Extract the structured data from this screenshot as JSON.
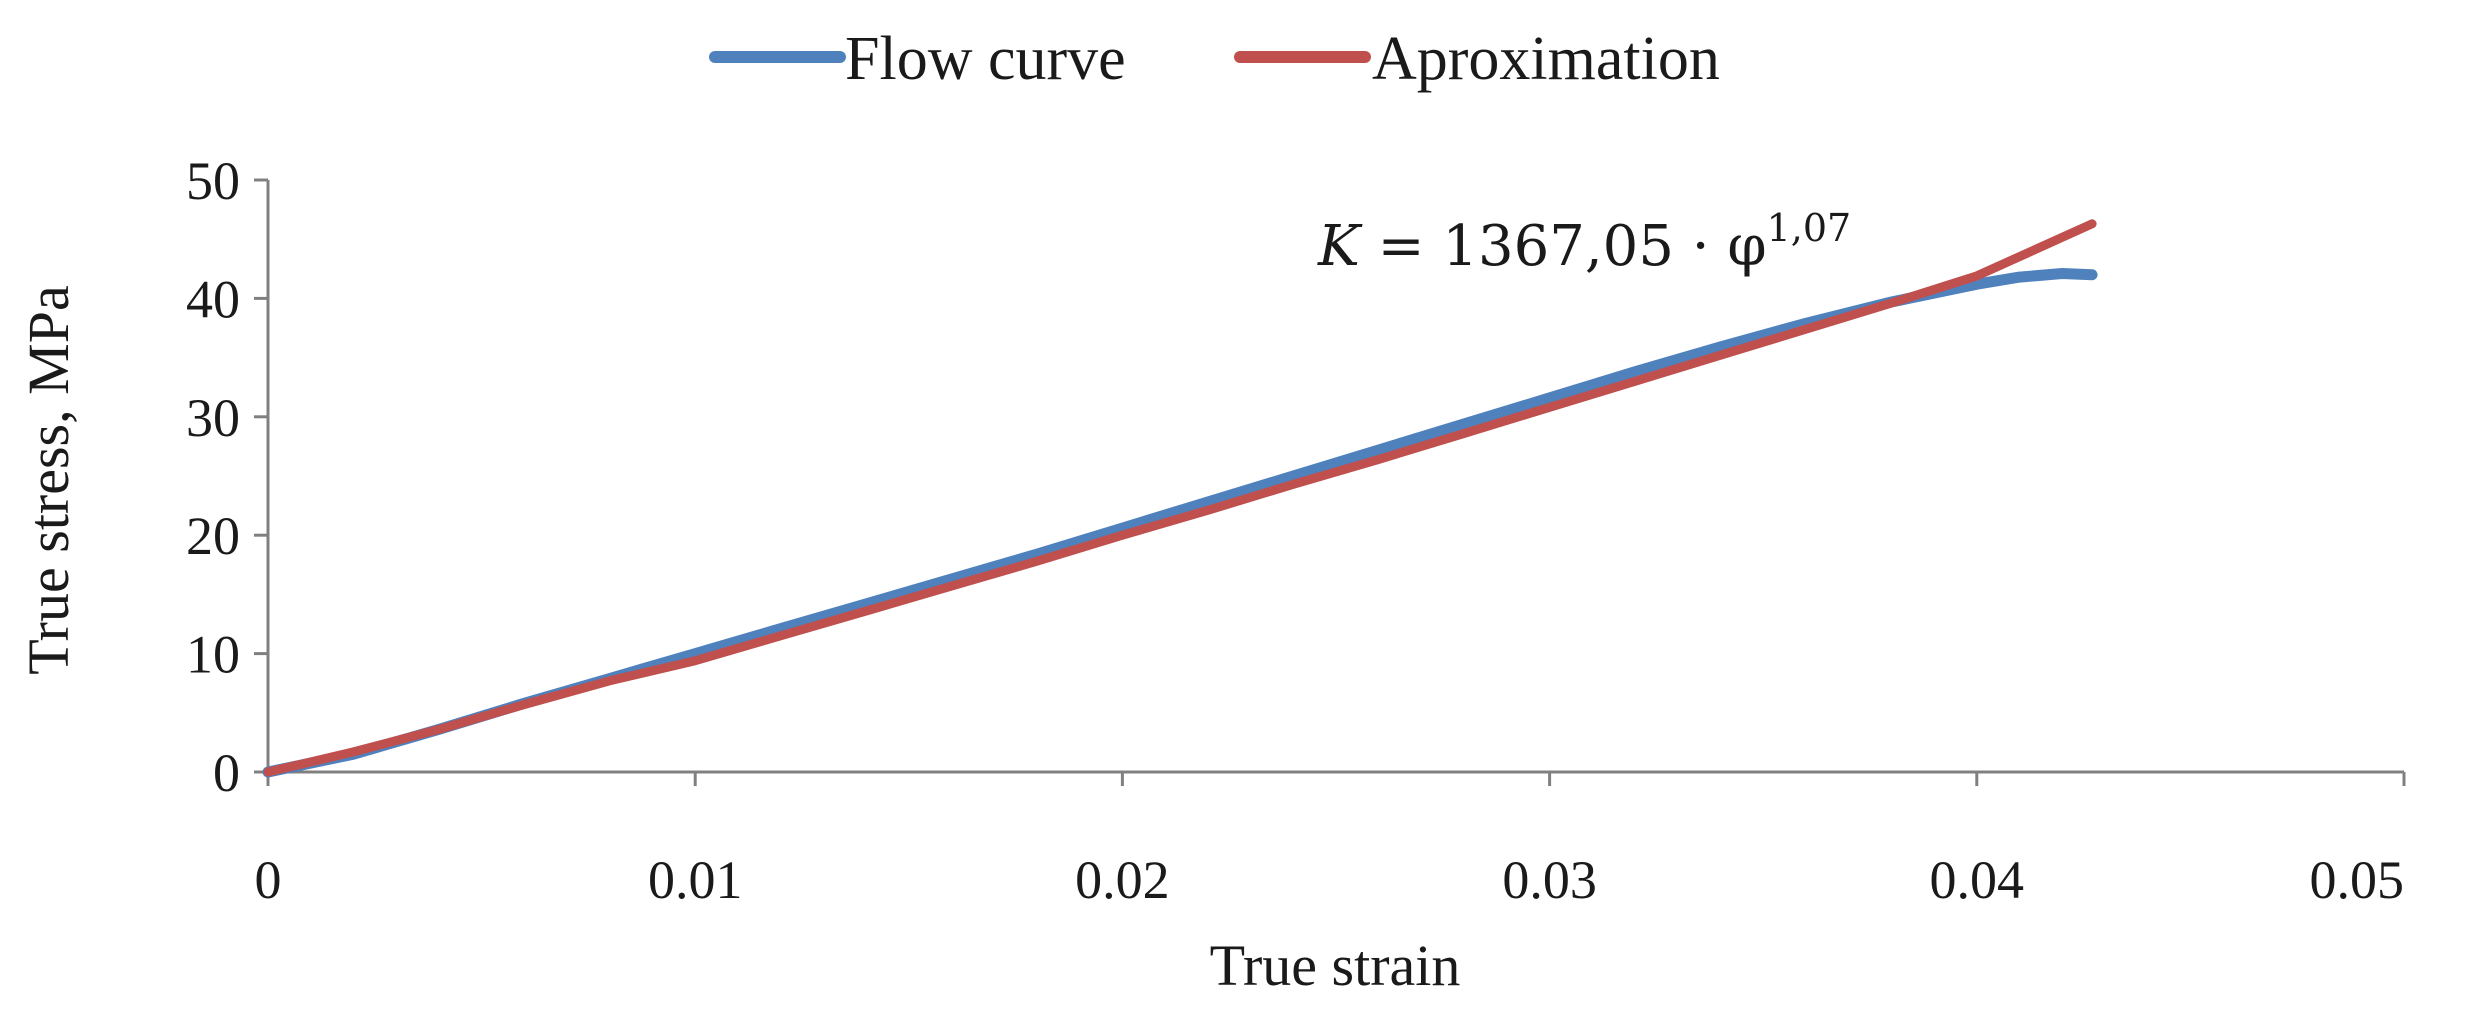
{
  "chart_data": {
    "type": "line",
    "xlabel": "True strain",
    "ylabel": "True stress, MPa",
    "xlim": [
      0,
      0.05
    ],
    "ylim": [
      0,
      50
    ],
    "x_ticks": [
      0,
      0.01,
      0.02,
      0.03,
      0.04,
      0.05
    ],
    "x_tick_labels": [
      "0",
      "0.01",
      "0.02",
      "0.03",
      "0.04",
      "0.05"
    ],
    "y_ticks": [
      0,
      10,
      20,
      30,
      40,
      50
    ],
    "y_tick_labels": [
      "0",
      "10",
      "20",
      "30",
      "40",
      "50"
    ],
    "grid": false,
    "legend_position": "top",
    "series": [
      {
        "name": "Flow curve",
        "color": "#4f81bd",
        "x": [
          0,
          0.002,
          0.004,
          0.006,
          0.008,
          0.01,
          0.012,
          0.014,
          0.016,
          0.018,
          0.02,
          0.022,
          0.024,
          0.026,
          0.028,
          0.03,
          0.032,
          0.034,
          0.036,
          0.038,
          0.04,
          0.041,
          0.042,
          0.0427
        ],
        "y": [
          0,
          1.5,
          3.6,
          5.8,
          7.9,
          10.0,
          12.1,
          14.2,
          16.3,
          18.4,
          20.6,
          22.8,
          25.0,
          27.2,
          29.4,
          31.6,
          33.8,
          35.9,
          37.9,
          39.7,
          41.2,
          41.8,
          42.1,
          42.0
        ]
      },
      {
        "name": "Aproximation",
        "color": "#c0504d",
        "x": [
          0,
          0.002,
          0.004,
          0.006,
          0.008,
          0.01,
          0.012,
          0.014,
          0.016,
          0.018,
          0.02,
          0.022,
          0.024,
          0.026,
          0.028,
          0.03,
          0.032,
          0.034,
          0.036,
          0.038,
          0.04,
          0.0427
        ],
        "y": [
          0,
          1.7,
          3.6,
          5.7,
          7.7,
          9.4,
          11.5,
          13.6,
          15.7,
          17.8,
          20.0,
          22.1,
          24.3,
          26.4,
          28.6,
          30.8,
          33.0,
          35.2,
          37.4,
          39.6,
          41.9,
          46.3
        ]
      }
    ],
    "annotation": {
      "lhs": "K",
      "rhs": " = 1367,05 · φ",
      "exponent": "1,07"
    }
  }
}
